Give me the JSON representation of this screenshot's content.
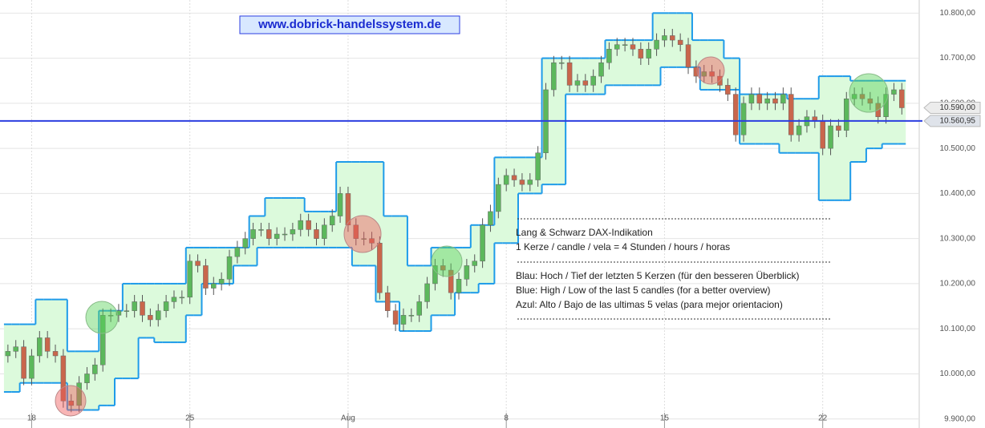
{
  "chart_data": {
    "type": "candlestick",
    "site_label": "www.dobrick-handelssystem.de",
    "annotations": [
      "Lang & Schwarz DAX-Indikation",
      "1 Kerze / candle / vela = 4 Stunden / hours / horas",
      "Blau: Hoch / Tief der letzten 5 Kerzen (für den besseren Überblick)",
      "Blue: High / Low of the last 5 candles (for a better overview)",
      "Azul: Alto / Bajo de las ultimas 5 velas (para mejor orientacion)"
    ],
    "up_color": "#5cb85c",
    "down_color": "#c9664c",
    "band_color": "#1e9be9",
    "band_fill": "#dcfadc",
    "line_color": "#2b3ee0",
    "open": [
      10040,
      10050,
      10060,
      9990,
      10040,
      10080,
      10050,
      10040,
      9940,
      9930,
      9980,
      10000,
      10020,
      10130,
      10130,
      10140,
      10140,
      10160,
      10130,
      10120,
      10140,
      10160,
      10170,
      10170,
      10250,
      10240,
      10190,
      10200,
      10210,
      10260,
      10280,
      10300,
      10320,
      10320,
      10300,
      10310,
      10310,
      10320,
      10340,
      10320,
      10300,
      10330,
      10350,
      10400,
      10330,
      10300,
      10300,
      10290,
      10180,
      10140,
      10110,
      10130,
      10130,
      10160,
      10200,
      10240,
      10230,
      10180,
      10210,
      10240,
      10250,
      10330,
      10360,
      10420,
      10440,
      10430,
      10420,
      10430,
      10490,
      10630,
      10690,
      10690,
      10640,
      10650,
      10640,
      10660,
      10690,
      10720,
      10730,
      10730,
      10720,
      10700,
      10720,
      10740,
      10750,
      10740,
      10730,
      10680,
      10660,
      10670,
      10660,
      10640,
      10620,
      10530,
      10600,
      10620,
      10600,
      10610,
      10600,
      10620,
      10530,
      10550,
      10570,
      10560,
      10500,
      10550,
      10540,
      10610,
      10620,
      10610,
      10600,
      10570,
      10620,
      10630
    ],
    "high": [
      10065,
      10075,
      10075,
      10055,
      10095,
      10095,
      10065,
      10055,
      9955,
      9995,
      10015,
      10035,
      10145,
      10145,
      10155,
      10155,
      10175,
      10175,
      10145,
      10155,
      10175,
      10185,
      10185,
      10265,
      10265,
      10255,
      10215,
      10225,
      10275,
      10295,
      10315,
      10335,
      10335,
      10335,
      10325,
      10325,
      10335,
      10355,
      10355,
      10335,
      10345,
      10365,
      10415,
      10415,
      10345,
      10315,
      10315,
      10305,
      10195,
      10155,
      10145,
      10145,
      10175,
      10215,
      10255,
      10255,
      10245,
      10225,
      10255,
      10265,
      10345,
      10375,
      10435,
      10455,
      10455,
      10445,
      10445,
      10505,
      10645,
      10705,
      10705,
      10705,
      10665,
      10665,
      10675,
      10705,
      10735,
      10745,
      10745,
      10745,
      10735,
      10735,
      10755,
      10765,
      10765,
      10755,
      10745,
      10695,
      10685,
      10685,
      10675,
      10655,
      10635,
      10615,
      10635,
      10635,
      10625,
      10625,
      10635,
      10635,
      10565,
      10585,
      10585,
      10575,
      10565,
      10565,
      10625,
      10635,
      10635,
      10625,
      10615,
      10635,
      10645,
      10645
    ],
    "low": [
      10025,
      10035,
      9975,
      9975,
      10025,
      10035,
      10025,
      9925,
      9915,
      9915,
      9965,
      9985,
      10005,
      10115,
      10115,
      10125,
      10125,
      10115,
      10105,
      10105,
      10125,
      10145,
      10155,
      10155,
      10225,
      10175,
      10175,
      10185,
      10195,
      10245,
      10265,
      10285,
      10305,
      10285,
      10285,
      10295,
      10295,
      10305,
      10305,
      10285,
      10285,
      10315,
      10335,
      10315,
      10285,
      10285,
      10275,
      10165,
      10125,
      10095,
      10095,
      10115,
      10115,
      10145,
      10185,
      10215,
      10165,
      10165,
      10195,
      10225,
      10235,
      10315,
      10345,
      10405,
      10415,
      10405,
      10405,
      10415,
      10475,
      10615,
      10675,
      10625,
      10625,
      10625,
      10625,
      10645,
      10675,
      10705,
      10715,
      10705,
      10685,
      10685,
      10705,
      10725,
      10725,
      10715,
      10665,
      10645,
      10645,
      10645,
      10625,
      10605,
      10515,
      10515,
      10585,
      10585,
      10585,
      10585,
      10585,
      10515,
      10515,
      10535,
      10545,
      10485,
      10485,
      10525,
      10525,
      10595,
      10595,
      10585,
      10555,
      10555,
      10605,
      10575
    ],
    "close": [
      10050,
      10060,
      9990,
      10040,
      10080,
      10050,
      10040,
      9940,
      9930,
      9980,
      10000,
      10020,
      10130,
      10130,
      10140,
      10140,
      10160,
      10130,
      10120,
      10140,
      10160,
      10170,
      10170,
      10250,
      10240,
      10190,
      10200,
      10210,
      10260,
      10280,
      10300,
      10320,
      10320,
      10300,
      10310,
      10310,
      10320,
      10340,
      10320,
      10300,
      10330,
      10350,
      10400,
      10330,
      10300,
      10300,
      10290,
      10180,
      10140,
      10110,
      10130,
      10130,
      10160,
      10200,
      10240,
      10230,
      10180,
      10210,
      10240,
      10250,
      10330,
      10360,
      10420,
      10440,
      10430,
      10420,
      10430,
      10490,
      10630,
      10690,
      10690,
      10640,
      10650,
      10640,
      10660,
      10690,
      10720,
      10730,
      10730,
      10720,
      10700,
      10720,
      10740,
      10750,
      10740,
      10730,
      10680,
      10660,
      10670,
      10660,
      10640,
      10620,
      10530,
      10600,
      10620,
      10600,
      10610,
      10600,
      10620,
      10530,
      10550,
      10570,
      10560,
      10500,
      10550,
      10540,
      10610,
      10620,
      10610,
      10600,
      10570,
      10620,
      10630,
      10590
    ],
    "band_upper": [
      10110,
      10110,
      10110,
      10110,
      10165,
      10165,
      10165,
      10165,
      10050,
      10050,
      10050,
      10050,
      10140,
      10140,
      10140,
      10200,
      10200,
      10200,
      10200,
      10200,
      10200,
      10200,
      10200,
      10280,
      10280,
      10280,
      10280,
      10280,
      10280,
      10280,
      10280,
      10350,
      10350,
      10390,
      10390,
      10390,
      10390,
      10390,
      10360,
      10360,
      10360,
      10360,
      10470,
      10470,
      10470,
      10470,
      10470,
      10470,
      10350,
      10350,
      10350,
      10240,
      10240,
      10240,
      10280,
      10280,
      10280,
      10280,
      10280,
      10330,
      10330,
      10330,
      10480,
      10480,
      10480,
      10480,
      10480,
      10480,
      10700,
      10700,
      10700,
      10700,
      10700,
      10700,
      10700,
      10700,
      10740,
      10740,
      10740,
      10740,
      10740,
      10740,
      10800,
      10800,
      10800,
      10800,
      10800,
      10740,
      10740,
      10740,
      10740,
      10700,
      10700,
      10620,
      10620,
      10620,
      10620,
      10620,
      10620,
      10610,
      10610,
      10610,
      10610,
      10660,
      10660,
      10660,
      10660,
      10650,
      10650,
      10650,
      10650,
      10650,
      10650,
      10650
    ],
    "band_lower": [
      9960,
      9960,
      9980,
      9980,
      9980,
      9980,
      9980,
      9980,
      9920,
      9920,
      9920,
      9920,
      9930,
      9930,
      9990,
      9990,
      9990,
      10080,
      10080,
      10070,
      10070,
      10070,
      10070,
      10130,
      10130,
      10200,
      10200,
      10200,
      10200,
      10240,
      10240,
      10240,
      10280,
      10280,
      10280,
      10280,
      10280,
      10280,
      10280,
      10280,
      10280,
      10280,
      10280,
      10280,
      10240,
      10240,
      10240,
      10160,
      10160,
      10160,
      10095,
      10095,
      10095,
      10095,
      10130,
      10130,
      10130,
      10180,
      10180,
      10180,
      10200,
      10200,
      10290,
      10290,
      10290,
      10400,
      10400,
      10400,
      10420,
      10420,
      10420,
      10620,
      10620,
      10620,
      10620,
      10620,
      10640,
      10640,
      10640,
      10640,
      10640,
      10640,
      10640,
      10680,
      10680,
      10680,
      10680,
      10680,
      10630,
      10630,
      10630,
      10630,
      10630,
      10510,
      10510,
      10510,
      10510,
      10510,
      10490,
      10490,
      10490,
      10490,
      10490,
      10385,
      10385,
      10385,
      10385,
      10470,
      10470,
      10500,
      10500,
      10510,
      10510,
      10510
    ],
    "price_lines": [
      {
        "value": 10590,
        "label": "10.590,00"
      },
      {
        "value": 10560.95,
        "label": "10.560,95"
      }
    ],
    "xlim": [
      -1,
      115.2
    ],
    "xticks": [
      {
        "value": 3,
        "label": "18"
      },
      {
        "value": 23,
        "label": "25"
      },
      {
        "value": 43,
        "label": "Aug"
      },
      {
        "value": 63,
        "label": "8"
      },
      {
        "value": 83,
        "label": "15"
      },
      {
        "value": 103,
        "label": "22"
      }
    ],
    "ylim": [
      9880,
      10829
    ],
    "yticks": [
      {
        "value": 9900,
        "label": "9.900,00"
      },
      {
        "value": 10000,
        "label": "10.000,00"
      },
      {
        "value": 10100,
        "label": "10.100,00"
      },
      {
        "value": 10200,
        "label": "10.200,00"
      },
      {
        "value": 10300,
        "label": "10.300,00"
      },
      {
        "value": 10400,
        "label": "10.400,00"
      },
      {
        "value": 10500,
        "label": "10.500,00"
      },
      {
        "value": 10600,
        "label": "10.600,00"
      },
      {
        "value": 10700,
        "label": "10.700,00"
      },
      {
        "value": 10800,
        "label": "10.800,00"
      }
    ],
    "grid": true
  }
}
